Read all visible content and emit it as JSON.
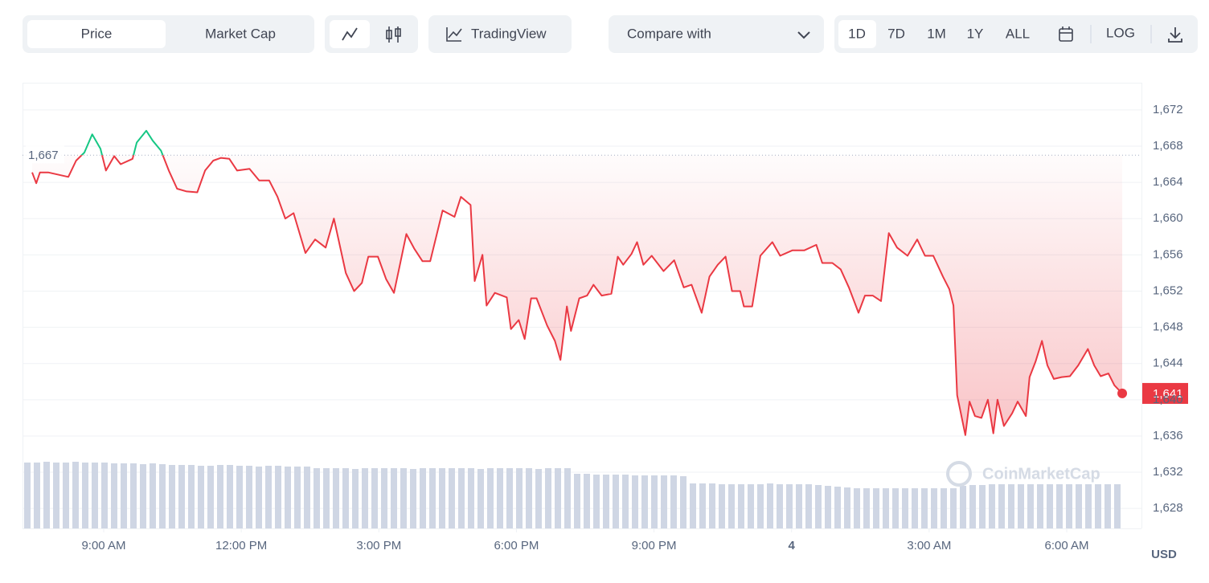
{
  "toolbar": {
    "view_tabs": [
      "Price",
      "Market Cap"
    ],
    "tradingview": "TradingView",
    "compare": "Compare with",
    "ranges": [
      "1D",
      "7D",
      "1M",
      "1Y",
      "ALL"
    ],
    "log": "LOG"
  },
  "chart_data": {
    "type": "line",
    "x": [
      7.44,
      7.53,
      7.61,
      7.79,
      8.23,
      8.4,
      8.58,
      8.75,
      8.93,
      9.05,
      9.23,
      9.37,
      9.63,
      9.72,
      9.93,
      10.07,
      10.25,
      10.42,
      10.6,
      10.81,
      11.04,
      11.21,
      11.39,
      11.56,
      11.74,
      11.91,
      12.18,
      12.39,
      12.61,
      12.79,
      12.96,
      13.14,
      13.4,
      13.61,
      13.84,
      14.02,
      14.28,
      14.46,
      14.63,
      14.77,
      14.98,
      15.16,
      15.33,
      15.46,
      15.6,
      15.77,
      15.95,
      16.12,
      16.39,
      16.65,
      16.79,
      17.0,
      17.09,
      17.26,
      17.35,
      17.53,
      17.79,
      17.88,
      18.05,
      18.18,
      18.32,
      18.44,
      18.67,
      18.84,
      18.96,
      19.1,
      19.19,
      19.37,
      19.54,
      19.68,
      19.86,
      20.07,
      20.21,
      20.33,
      20.51,
      20.63,
      20.77,
      20.95,
      21.21,
      21.44,
      21.65,
      21.82,
      22.04,
      22.21,
      22.39,
      22.56,
      22.7,
      22.88,
      22.96,
      23.14,
      23.32,
      23.58,
      23.75,
      24.02,
      24.28,
      24.54,
      24.67,
      24.89,
      25.07,
      25.25,
      25.46,
      25.6,
      25.77,
      25.95,
      26.12,
      26.3,
      26.53,
      26.74,
      26.91,
      27.09,
      27.3,
      27.44,
      27.53,
      27.61,
      27.79,
      27.88,
      28.0,
      28.14,
      28.28,
      28.4,
      28.49,
      28.63,
      28.81,
      28.93,
      29.11,
      29.19,
      29.32,
      29.46,
      29.58,
      29.72,
      29.89,
      30.07,
      30.25,
      30.46,
      30.6,
      30.74,
      30.91,
      31.04,
      31.21
    ],
    "values": [
      1665.1,
      1663.9,
      1665.1,
      1665.1,
      1664.6,
      1666.4,
      1667.3,
      1669.3,
      1667.7,
      1665.3,
      1666.9,
      1666.0,
      1666.6,
      1668.4,
      1669.7,
      1668.6,
      1667.5,
      1665.3,
      1663.3,
      1663.0,
      1662.9,
      1665.3,
      1666.4,
      1666.7,
      1666.6,
      1665.3,
      1665.5,
      1664.2,
      1664.2,
      1662.4,
      1660.0,
      1660.6,
      1656.2,
      1657.7,
      1656.8,
      1660.0,
      1654.0,
      1652.0,
      1652.9,
      1655.8,
      1655.8,
      1653.3,
      1651.8,
      1654.9,
      1658.3,
      1656.7,
      1655.3,
      1655.3,
      1660.9,
      1660.2,
      1662.4,
      1661.5,
      1653.1,
      1656.0,
      1650.4,
      1651.8,
      1651.3,
      1647.8,
      1648.8,
      1646.7,
      1651.2,
      1651.2,
      1648.2,
      1646.5,
      1644.4,
      1650.3,
      1647.6,
      1651.2,
      1651.5,
      1652.7,
      1651.5,
      1651.7,
      1655.8,
      1654.9,
      1656.1,
      1657.4,
      1654.9,
      1655.9,
      1654.2,
      1655.4,
      1652.4,
      1652.7,
      1649.6,
      1653.6,
      1654.9,
      1655.8,
      1652.0,
      1652.0,
      1650.3,
      1650.3,
      1655.9,
      1657.4,
      1655.9,
      1656.5,
      1656.5,
      1657.1,
      1655.1,
      1655.1,
      1654.4,
      1652.4,
      1649.6,
      1651.5,
      1651.5,
      1650.9,
      1658.4,
      1656.8,
      1655.9,
      1657.7,
      1655.9,
      1655.9,
      1653.6,
      1652.2,
      1650.4,
      1640.5,
      1636.1,
      1639.8,
      1638.2,
      1638.0,
      1640.0,
      1636.3,
      1640.0,
      1637.1,
      1638.5,
      1639.8,
      1638.2,
      1642.5,
      1644.2,
      1646.5,
      1643.8,
      1642.3,
      1642.5,
      1642.6,
      1643.8,
      1645.6,
      1643.8,
      1642.6,
      1642.9,
      1641.6,
      1640.7
    ],
    "up_color": "#16c784",
    "down_color": "#ea3943",
    "baseline": {
      "value": 1667,
      "label": "1,667"
    },
    "last_price_label": "1,641",
    "xlim": [
      7.23,
      31.63
    ],
    "xticks": [
      {
        "value": 9,
        "label": "9:00 AM"
      },
      {
        "value": 12,
        "label": "12:00 PM"
      },
      {
        "value": 15,
        "label": "3:00 PM"
      },
      {
        "value": 18,
        "label": "6:00 PM"
      },
      {
        "value": 21,
        "label": "9:00 PM"
      },
      {
        "value": 24,
        "label": "4"
      },
      {
        "value": 27,
        "label": "3:00 AM"
      },
      {
        "value": 30,
        "label": "6:00 AM"
      }
    ],
    "ylim": [
      1625.8,
      1675
    ],
    "yticks": [
      {
        "value": 1628,
        "label": "1,628"
      },
      {
        "value": 1632,
        "label": "1,632"
      },
      {
        "value": 1636,
        "label": "1,636"
      },
      {
        "value": 1640,
        "label": "1,640"
      },
      {
        "value": 1644,
        "label": "1,644"
      },
      {
        "value": 1648,
        "label": "1,648"
      },
      {
        "value": 1652,
        "label": "1,652"
      },
      {
        "value": 1656,
        "label": "1,656"
      },
      {
        "value": 1660,
        "label": "1,660"
      },
      {
        "value": 1664,
        "label": "1,664"
      },
      {
        "value": 1668,
        "label": "1,668"
      },
      {
        "value": 1672,
        "label": "1,672"
      }
    ],
    "y_unit": "USD",
    "grid": true,
    "watermark": "CoinMarketCap",
    "volume": {
      "color": "#cfd6e4",
      "values": [
        82,
        82,
        83,
        82,
        82,
        83,
        82,
        82,
        82,
        81,
        81,
        81,
        80,
        81,
        80,
        79,
        79,
        79,
        78,
        78,
        79,
        79,
        78,
        78,
        77,
        78,
        78,
        77,
        77,
        77,
        75,
        75,
        75,
        75,
        74,
        75,
        75,
        75,
        75,
        75,
        74,
        75,
        75,
        75,
        75,
        75,
        75,
        74,
        75,
        75,
        75,
        75,
        75,
        74,
        75,
        75,
        75,
        68,
        68,
        67,
        67,
        67,
        67,
        66,
        66,
        66,
        66,
        66,
        65,
        56,
        56,
        56,
        55,
        55,
        55,
        55,
        55,
        56,
        55,
        55,
        55,
        55,
        54,
        53,
        52,
        51,
        50,
        50,
        50,
        50,
        50,
        50,
        50,
        50,
        50,
        50,
        50,
        53,
        54,
        54,
        55,
        55,
        55,
        55,
        55,
        55,
        55,
        55,
        55,
        55,
        55,
        55,
        55,
        55
      ]
    }
  }
}
